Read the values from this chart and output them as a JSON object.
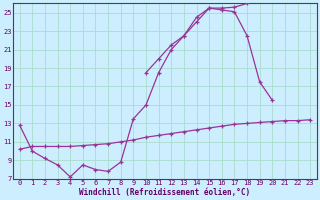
{
  "xlabel": "Windchill (Refroidissement éolien,°C)",
  "background_color": "#cceeff",
  "grid_color": "#aaddcc",
  "line_color": "#993399",
  "xlim": [
    -0.5,
    23.5
  ],
  "ylim": [
    7,
    26
  ],
  "xticks": [
    0,
    1,
    2,
    3,
    4,
    5,
    6,
    7,
    8,
    9,
    10,
    11,
    12,
    13,
    14,
    15,
    16,
    17,
    18,
    19,
    20,
    21,
    22,
    23
  ],
  "yticks": [
    7,
    9,
    11,
    13,
    15,
    17,
    19,
    21,
    23,
    25
  ],
  "line1_x": [
    0,
    1,
    2,
    3,
    4,
    5,
    6,
    7,
    8,
    9,
    10,
    11,
    12,
    13,
    14,
    15,
    16,
    17,
    18,
    19,
    20,
    21,
    22,
    23
  ],
  "line1_y": [
    10.2,
    10.5,
    10.5,
    10.5,
    10.5,
    10.6,
    10.7,
    10.8,
    11.0,
    11.2,
    11.5,
    11.7,
    11.9,
    12.1,
    12.3,
    12.5,
    12.7,
    12.9,
    13.0,
    13.1,
    13.2,
    13.3,
    13.3,
    13.4
  ],
  "line2_x": [
    0,
    1,
    2,
    3,
    4,
    5,
    6,
    7,
    8,
    9,
    10,
    11,
    12,
    13,
    14,
    15,
    16,
    17,
    18,
    19,
    20,
    21,
    22,
    23
  ],
  "line2_y": [
    12.8,
    10.0,
    9.2,
    8.5,
    7.2,
    8.5,
    8.0,
    7.8,
    8.8,
    13.5,
    15.0,
    18.5,
    21.0,
    22.5,
    24.5,
    25.5,
    25.3,
    25.1,
    22.5,
    17.5,
    15.5,
    null,
    null,
    null
  ],
  "line3_x": [
    10,
    11,
    12,
    13,
    14,
    15,
    16,
    17,
    18,
    19,
    20,
    21,
    22,
    23
  ],
  "line3_y": [
    18.5,
    20.0,
    21.5,
    22.5,
    24.0,
    25.5,
    25.5,
    25.6,
    26.0,
    26.5,
    null,
    null,
    null,
    null
  ],
  "tick_fontsize": 5.0,
  "xlabel_fontsize": 5.5
}
